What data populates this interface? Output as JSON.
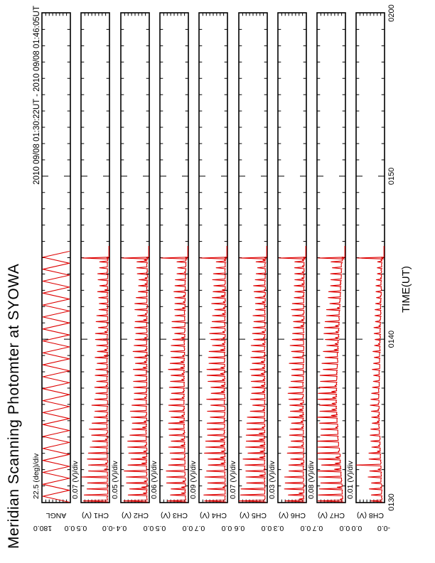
{
  "header": {
    "title": "Meridian Scanning Photomter at SYOWA",
    "date_range": "2010 09/08 01:30:22UT - 2010 09/08 01:46:05UT"
  },
  "chart_data": {
    "type": "line",
    "title": "Meridian Scanning Photomter at SYOWA",
    "subtitle": "2010 09/08 01:30:22UT - 2010 09/08 01:46:05UT",
    "xlabel": "TIME(UT)",
    "x_ticks": [
      "0130",
      "0140",
      "0150",
      "0200"
    ],
    "x_tick_minutes": [
      0,
      10,
      20,
      30
    ],
    "x_start": "01:30",
    "x_end": "02:00",
    "x_range_minutes": 30,
    "minor_tick_minutes": 1,
    "data_end_minute": 15.72,
    "data_end_label": "01:46:05UT",
    "scan_period_minutes": 0.3667,
    "y_divisions_per_panel": 8,
    "legend_position": "none",
    "grid": false,
    "colors": {
      "trace": "#dd0000",
      "frame": "#000000",
      "background": "#ffffff"
    },
    "env_t": [
      0,
      2,
      4,
      6,
      8,
      10,
      12,
      14,
      15
    ],
    "final_event": {
      "t": 14.98,
      "v": 0.97,
      "note": "full-scale spike on all channels, then flat 0 until data end"
    },
    "panels": [
      {
        "label": "ANGL",
        "div_label": "22.5 (deg)/div",
        "tick_max": "180.0",
        "tick_min": "0.0",
        "type": "triangle",
        "triangle_min": 0,
        "triangle_max": 180,
        "period_minutes": 0.733,
        "end_minute": 15.6
      },
      {
        "label": "CH1 (V)",
        "div_label": "0.07 (V)/div",
        "tick_max": "0.5",
        "tick_min": "-0.0",
        "type": "spikes",
        "spike_env": [
          0.95,
          0.8,
          0.62,
          0.5,
          0.45,
          0.4,
          0.36,
          0.32,
          0.3
        ],
        "base_env": [
          0.04,
          0.05,
          0.05,
          0.05,
          0.05,
          0.04,
          0.04,
          0.04,
          0.04
        ],
        "events": []
      },
      {
        "label": "CH2 (V)",
        "div_label": "0.05 (V)/div",
        "tick_max": "0.4",
        "tick_min": "0.0",
        "type": "spikes",
        "spike_env": [
          0.8,
          0.72,
          0.6,
          0.52,
          0.48,
          0.44,
          0.4,
          0.36,
          0.33
        ],
        "base_env": [
          0.05,
          0.06,
          0.07,
          0.07,
          0.06,
          0.05,
          0.05,
          0.04,
          0.04
        ],
        "events": []
      },
      {
        "label": "CH3 (V)",
        "div_label": "0.06 (V)/div",
        "tick_max": "0.5",
        "tick_min": "0.0",
        "type": "spikes",
        "spike_env": [
          0.6,
          0.62,
          0.55,
          0.5,
          0.52,
          0.45,
          0.4,
          0.36,
          0.32
        ],
        "base_env": [
          0.07,
          0.09,
          0.11,
          0.12,
          0.12,
          0.1,
          0.09,
          0.07,
          0.06
        ],
        "events": []
      },
      {
        "label": "CH4 (V)",
        "div_label": "0.09 (V)/div",
        "tick_max": "0.7",
        "tick_min": "0.0",
        "type": "spikes",
        "spike_env": [
          0.75,
          0.7,
          0.62,
          0.58,
          0.6,
          0.52,
          0.46,
          0.4,
          0.36
        ],
        "base_env": [
          0.05,
          0.06,
          0.07,
          0.07,
          0.07,
          0.06,
          0.05,
          0.05,
          0.04
        ],
        "events": []
      },
      {
        "label": "CH5 (V)",
        "div_label": "0.07 (V)/div",
        "tick_max": "0.6",
        "tick_min": "0.0",
        "type": "spikes",
        "spike_env": [
          0.85,
          0.75,
          0.62,
          0.52,
          0.48,
          0.45,
          0.4,
          0.36,
          0.32
        ],
        "base_env": [
          0.05,
          0.06,
          0.06,
          0.06,
          0.06,
          0.05,
          0.05,
          0.04,
          0.04
        ],
        "events": []
      },
      {
        "label": "CH6 (V)",
        "div_label": "0.03 (V)/div",
        "tick_max": "0.3",
        "tick_min": "0.0",
        "type": "spikes",
        "spike_env": [
          0.65,
          0.6,
          0.52,
          0.48,
          0.5,
          0.45,
          0.4,
          0.35,
          0.3
        ],
        "base_env": [
          0.06,
          0.07,
          0.08,
          0.08,
          0.08,
          0.07,
          0.06,
          0.05,
          0.05
        ],
        "events": []
      },
      {
        "label": "CH7 (V)",
        "div_label": "0.08 (V)/div",
        "tick_max": "0.7",
        "tick_min": "0.0",
        "type": "spikes",
        "spike_env": [
          0.85,
          0.8,
          0.72,
          0.62,
          0.56,
          0.5,
          0.45,
          0.4,
          0.35
        ],
        "base_env": [
          0.06,
          0.14,
          0.24,
          0.3,
          0.27,
          0.22,
          0.17,
          0.12,
          0.08
        ],
        "events": []
      },
      {
        "label": "CH8 (V)",
        "div_label": "0.01 (V)/div",
        "tick_max": "0.0",
        "tick_min": "-0.0",
        "type": "spikes",
        "spike_env": [
          0.38,
          0.45,
          0.32,
          0.28,
          0.26,
          0.23,
          0.2,
          0.18,
          0.15
        ],
        "base_env": [
          0.06,
          0.1,
          0.15,
          0.18,
          0.16,
          0.13,
          0.1,
          0.08,
          0.06
        ],
        "events": [
          {
            "t": 2.4,
            "v": 0.97
          }
        ]
      }
    ]
  }
}
